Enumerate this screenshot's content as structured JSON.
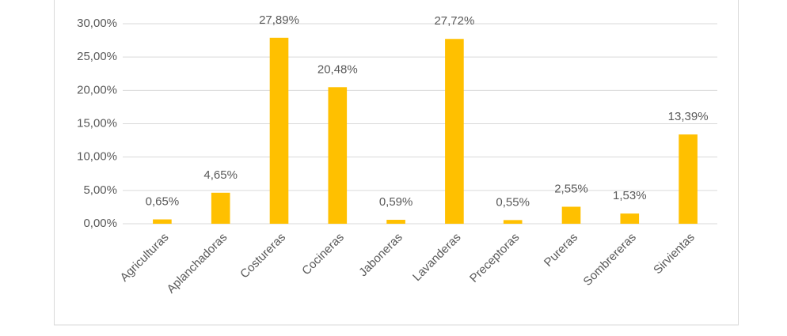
{
  "chart_data": {
    "type": "bar",
    "categories": [
      "Agriculturas",
      "Aplanchadoras",
      "Costureras",
      "Cocineras",
      "Jaboneras",
      "Lavanderas",
      "Preceptoras",
      "Pureras",
      "Sombrereras",
      "Sirvientas"
    ],
    "values": [
      0.65,
      4.65,
      27.89,
      20.48,
      0.59,
      27.72,
      0.55,
      2.55,
      1.53,
      13.39
    ],
    "value_labels": [
      "0,65%",
      "4,65%",
      "27,89%",
      "20,48%",
      "0,59%",
      "27,72%",
      "0,55%",
      "2,55%",
      "1,53%",
      "13,39%"
    ],
    "color": "#ffc000",
    "ylim": [
      0,
      30
    ],
    "yticks": [
      {
        "value": 0,
        "label": "0,00%"
      },
      {
        "value": 5,
        "label": "5,00%"
      },
      {
        "value": 10,
        "label": "10,00%"
      },
      {
        "value": 15,
        "label": "15,00%"
      },
      {
        "value": 20,
        "label": "20,00%"
      },
      {
        "value": 25,
        "label": "25,00%"
      },
      {
        "value": 30,
        "label": "30,00%"
      }
    ],
    "grid": true
  }
}
